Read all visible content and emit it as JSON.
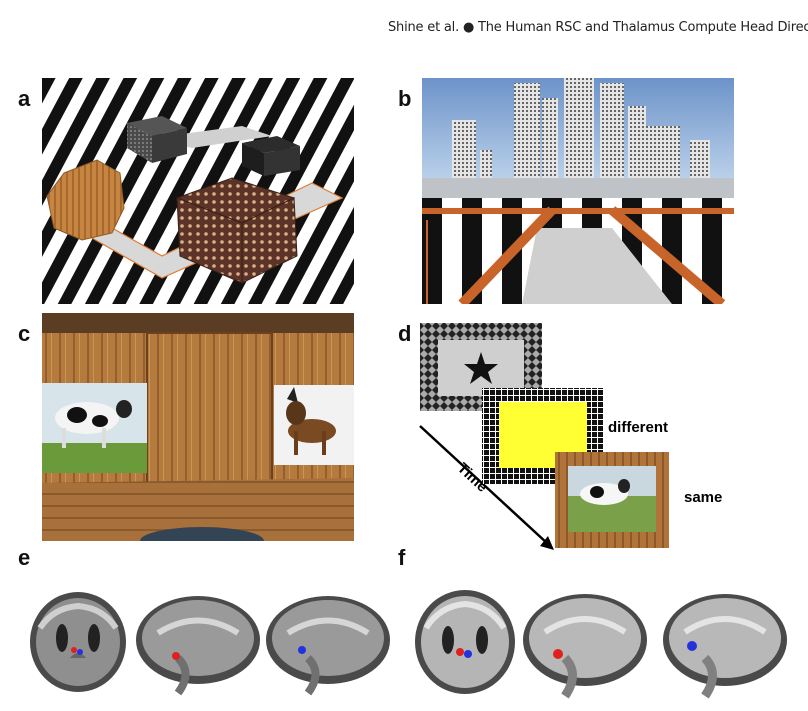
{
  "header": {
    "text": "Shine et al. ● The Human RSC and Thalamus Compute Head Direction"
  },
  "panels": {
    "a": {
      "label": "a"
    },
    "b": {
      "label": "b"
    },
    "c": {
      "label": "c"
    },
    "d": {
      "label": "d",
      "time_label": "Time",
      "different_label": "different",
      "same_label": "same"
    },
    "e": {
      "label": "e"
    },
    "f": {
      "label": "f"
    }
  },
  "colors": {
    "highlight_red": "#e0201e",
    "highlight_blue": "#2233dd",
    "yellow": "#ffff33",
    "handrail_orange": "#c8642a",
    "wood": "#b57a3e"
  }
}
